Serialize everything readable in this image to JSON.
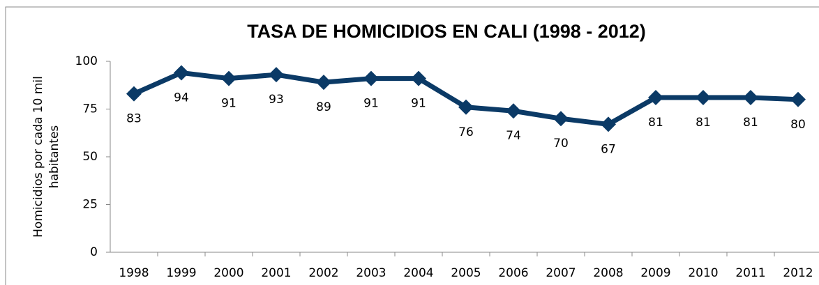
{
  "chart_data": {
    "type": "line",
    "title": "TASA DE HOMICIDIOS EN CALI  (1998 - 2012)",
    "ylabel": [
      "Homicidios por cada 10 mil",
      "habitantes"
    ],
    "categories": [
      "1998",
      "1999",
      "2000",
      "2001",
      "2002",
      "2003",
      "2004",
      "2005",
      "2006",
      "2007",
      "2008",
      "2009",
      "2010",
      "2011",
      "2012"
    ],
    "values": [
      83,
      94,
      91,
      93,
      89,
      91,
      91,
      76,
      74,
      70,
      67,
      81,
      81,
      81,
      80
    ],
    "color": "#0b3a66",
    "ylim": [
      0,
      100
    ],
    "yticks": [
      0,
      25,
      50,
      75,
      100
    ],
    "grid": false
  }
}
